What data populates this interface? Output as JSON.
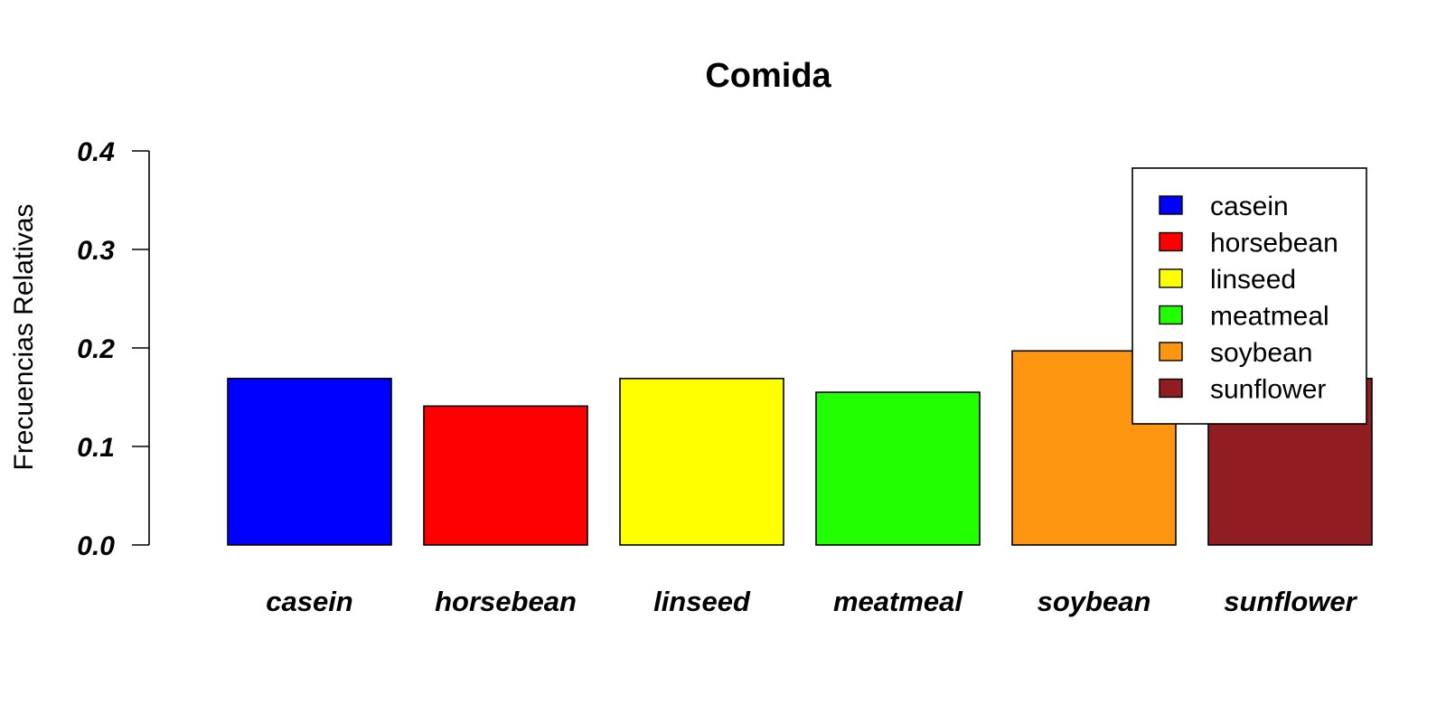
{
  "chart_data": {
    "type": "bar",
    "title": "Comida",
    "xlabel": "",
    "ylabel": "Frecuencias Relativas",
    "ylim": [
      0,
      0.4
    ],
    "yticks": [
      "0.0",
      "0.1",
      "0.2",
      "0.3",
      "0.4"
    ],
    "categories": [
      "casein",
      "horsebean",
      "linseed",
      "meatmeal",
      "soybean",
      "sunflower"
    ],
    "values": [
      0.169,
      0.141,
      0.169,
      0.155,
      0.197,
      0.169
    ],
    "colors": [
      "#0000ff",
      "#ff0000",
      "#ffff00",
      "#22ff00",
      "#ff9612",
      "#8f1d22"
    ],
    "grid": false,
    "legend": {
      "position": "top-right",
      "entries": [
        "casein",
        "horsebean",
        "linseed",
        "meatmeal",
        "soybean",
        "sunflower"
      ]
    }
  }
}
